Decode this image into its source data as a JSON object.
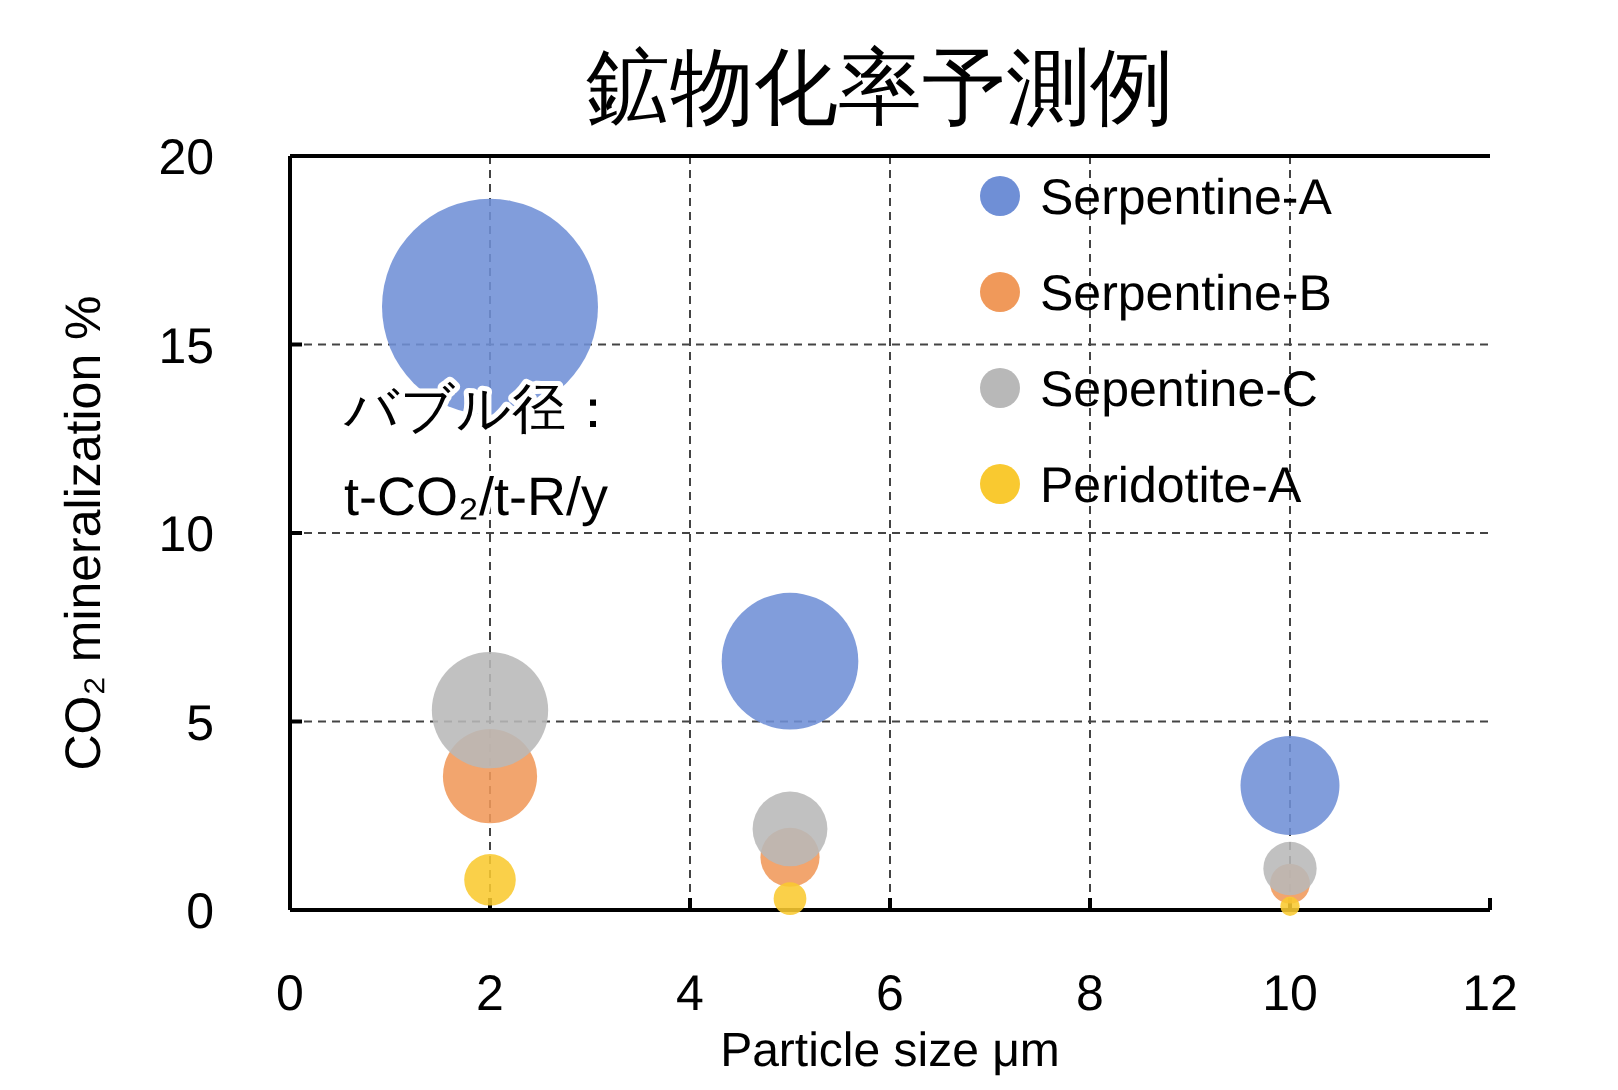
{
  "chart_data": {
    "type": "bubble",
    "title": "鉱物化率予測例",
    "xlabel": "Particle size μm",
    "ylabel": "CO₂ mineralization %",
    "annotations": [
      "バブル径：\nt-CO₂/t-R/y"
    ],
    "x": [
      2,
      5,
      10
    ],
    "series": [
      {
        "name": "Serpentine-A",
        "color": "#6f8fd6",
        "values": [
          16.0,
          6.6,
          3.3
        ],
        "sizes": [
          1,
          0.4,
          0.21
        ]
      },
      {
        "name": "Serpentine-B",
        "color": "#f0995a",
        "values": [
          3.55,
          1.4,
          0.7
        ],
        "sizes": [
          0.19,
          0.075,
          0.034
        ]
      },
      {
        "name": "Sepentine-C",
        "color": "#b8b8b8",
        "values": [
          5.3,
          2.15,
          1.1
        ],
        "sizes": [
          0.29,
          0.12,
          0.061
        ]
      },
      {
        "name": "Peridotite-A",
        "color": "#f9c930",
        "values": [
          0.8,
          0.3,
          0.1
        ],
        "sizes": [
          0.057,
          0.023,
          0.008
        ]
      }
    ],
    "xlim": [
      0,
      12
    ],
    "xticks": [
      0,
      2,
      4,
      6,
      8,
      10,
      12
    ],
    "ylim": [
      0,
      20
    ],
    "yticks": [
      0,
      5,
      10,
      15,
      20
    ],
    "grid": true,
    "legend": "top right"
  }
}
